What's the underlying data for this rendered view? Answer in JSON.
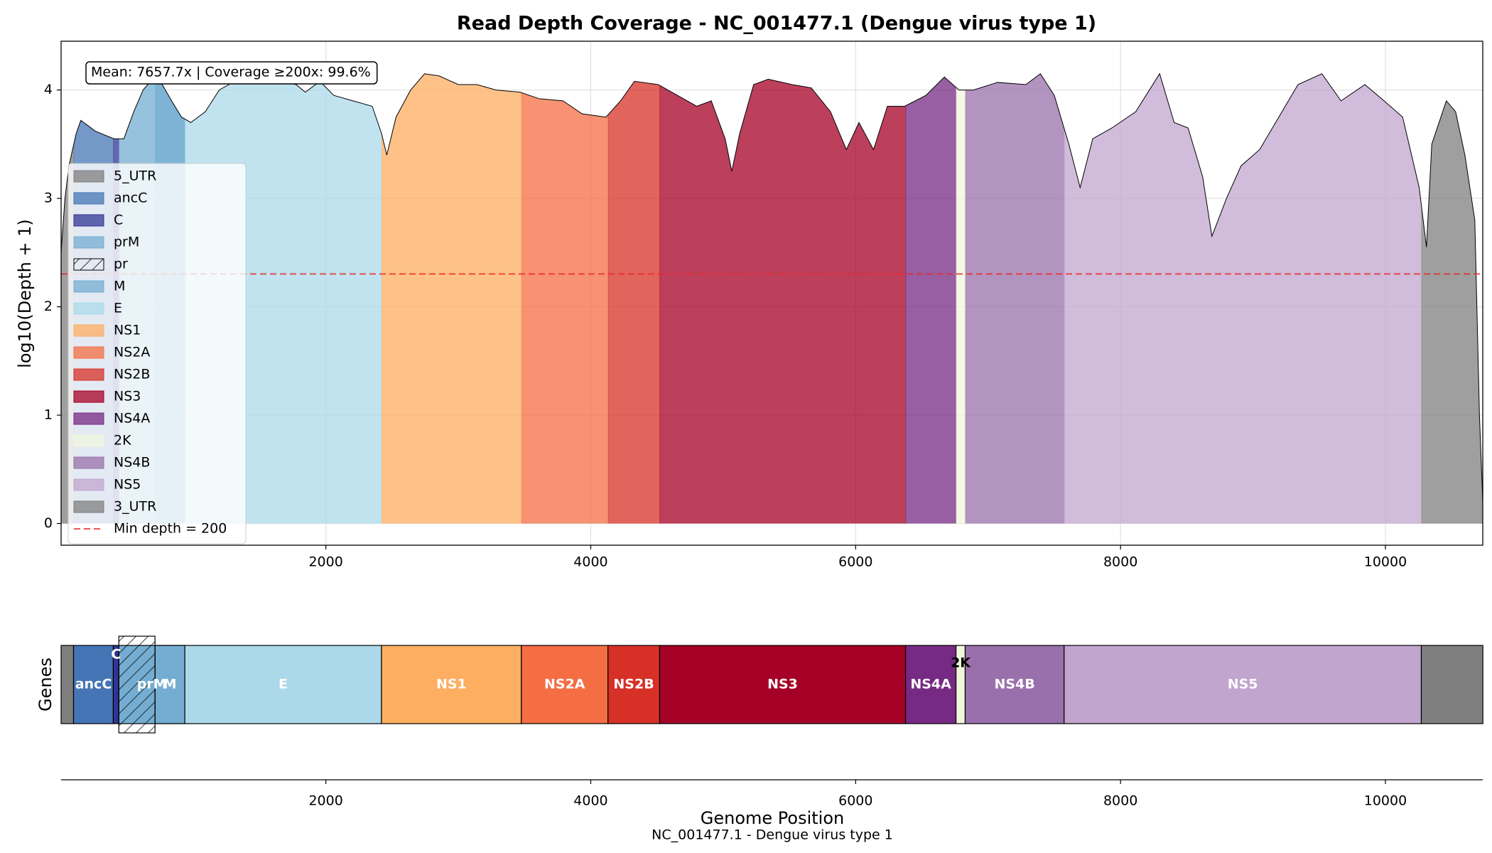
{
  "chart_data": [
    {
      "type": "area",
      "title": "Read Depth Coverage - NC_001477.1 (Dengue virus type 1)",
      "ylabel": "log10(Depth + 1)",
      "annotation": "Mean: 7657.7x   |  Coverage ≥200x: 99.6%",
      "x": [
        1,
        30,
        60,
        115,
        150,
        260,
        400,
        475,
        550,
        620,
        690,
        765,
        835,
        910,
        980,
        1090,
        1195,
        1340,
        1485,
        1630,
        1775,
        1845,
        1955,
        2060,
        2205,
        2350,
        2420,
        2460,
        2530,
        2640,
        2745,
        2855,
        3000,
        3140,
        3285,
        3465,
        3610,
        3790,
        3935,
        4115,
        4225,
        4330,
        4510,
        4655,
        4800,
        4910,
        5015,
        5065,
        5125,
        5230,
        5340,
        5520,
        5665,
        5810,
        5930,
        6025,
        6135,
        6240,
        6370,
        6530,
        6670,
        6780,
        6890,
        7070,
        7285,
        7395,
        7500,
        7610,
        7695,
        7790,
        7935,
        8115,
        8295,
        8405,
        8510,
        8620,
        8690,
        8800,
        8910,
        9050,
        9195,
        9340,
        9520,
        9665,
        9845,
        9990,
        10130,
        10255,
        10310,
        10350,
        10460,
        10530,
        10600,
        10675,
        10710,
        10735
      ],
      "values": [
        2.5,
        3.0,
        3.3,
        3.6,
        3.72,
        3.62,
        3.55,
        3.55,
        3.8,
        4.0,
        4.1,
        4.05,
        3.9,
        3.75,
        3.7,
        3.8,
        4.0,
        4.1,
        4.12,
        4.1,
        4.05,
        3.98,
        4.08,
        3.95,
        3.9,
        3.85,
        3.6,
        3.4,
        3.75,
        4.0,
        4.15,
        4.13,
        4.05,
        4.05,
        4.0,
        3.98,
        3.92,
        3.9,
        3.78,
        3.75,
        3.9,
        4.08,
        4.05,
        3.95,
        3.85,
        3.9,
        3.55,
        3.25,
        3.6,
        4.05,
        4.1,
        4.05,
        4.02,
        3.8,
        3.45,
        3.7,
        3.45,
        3.85,
        3.85,
        3.95,
        4.12,
        4.0,
        4.0,
        4.07,
        4.05,
        4.15,
        3.95,
        3.5,
        3.1,
        3.55,
        3.65,
        3.8,
        4.15,
        3.7,
        3.65,
        3.2,
        2.65,
        3.0,
        3.3,
        3.45,
        3.75,
        4.05,
        4.15,
        3.9,
        4.05,
        3.9,
        3.75,
        3.1,
        2.55,
        3.5,
        3.9,
        3.8,
        3.4,
        2.8,
        1.0,
        0.2
      ],
      "line_color": "#000000",
      "xlim": [
        1,
        10735
      ],
      "xticks": [
        2000,
        4000,
        6000,
        8000,
        10000
      ],
      "ylim": [
        -0.2,
        4.45
      ],
      "yticks": [
        0,
        1,
        2,
        3,
        4
      ],
      "grid": true,
      "threshold": 2.303,
      "threshold_label": "Min depth = 200",
      "threshold_color": "#e8282b",
      "legend": "left"
    },
    {
      "type": "gene-track",
      "ylabel": "Genes",
      "xlabel": "Genome Position",
      "subtitle": "NC_001477.1 - Dengue virus type 1",
      "xlim": [
        1,
        10735
      ],
      "xticks": [
        2000,
        4000,
        6000,
        8000,
        10000
      ],
      "genes": [
        {
          "name": "5_UTR",
          "start": 1,
          "end": 94,
          "color": "#7f7f7f",
          "show_label": false
        },
        {
          "name": "ancC",
          "start": 95,
          "end": 394,
          "color": "#4575b4"
        },
        {
          "name": "C",
          "start": 395,
          "end": 436,
          "color": "#313695"
        },
        {
          "name": "prM",
          "start": 437,
          "end": 934,
          "color": "#74add1"
        },
        {
          "name": "pr",
          "start": 437,
          "end": 709,
          "color": "#74add1",
          "hatch": true,
          "show_label": false
        },
        {
          "name": "M",
          "start": 710,
          "end": 934,
          "color": "#74add1"
        },
        {
          "name": "E",
          "start": 935,
          "end": 2419,
          "color": "#abd9e9"
        },
        {
          "name": "NS1",
          "start": 2420,
          "end": 3475,
          "color": "#fdae61"
        },
        {
          "name": "NS2A",
          "start": 3476,
          "end": 4129,
          "color": "#f46d43"
        },
        {
          "name": "NS2B",
          "start": 4130,
          "end": 4519,
          "color": "#d73027"
        },
        {
          "name": "NS3",
          "start": 4520,
          "end": 6376,
          "color": "#a50026"
        },
        {
          "name": "NS4A",
          "start": 6377,
          "end": 6757,
          "color": "#762a83"
        },
        {
          "name": "2K",
          "start": 6758,
          "end": 6826,
          "color": "#f0f5dc"
        },
        {
          "name": "NS4B",
          "start": 6827,
          "end": 7573,
          "color": "#9970ab"
        },
        {
          "name": "NS5",
          "start": 7574,
          "end": 10270,
          "color": "#c2a5cf"
        },
        {
          "name": "3_UTR",
          "start": 10271,
          "end": 10735,
          "color": "#7f7f7f",
          "show_label": false
        }
      ]
    }
  ]
}
